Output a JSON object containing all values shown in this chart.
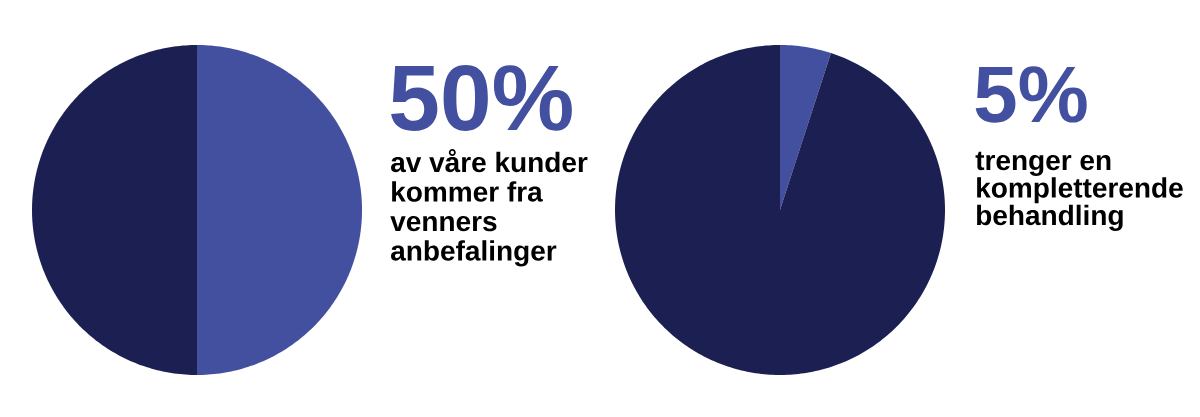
{
  "chart_data": [
    {
      "type": "pie",
      "title": "50%",
      "subtitle": "av våre kunder kommer fra venners anbefalinger",
      "categories": [
        null,
        null
      ],
      "values": [
        50,
        50
      ],
      "colors": [
        "#4350a0",
        "#1b1f52"
      ]
    },
    {
      "type": "pie",
      "title": "5%",
      "subtitle": "trenger en kompletterende behandling",
      "categories": [
        null,
        null
      ],
      "values": [
        5,
        95
      ],
      "colors": [
        "#4350a0",
        "#1b1f52"
      ]
    }
  ]
}
